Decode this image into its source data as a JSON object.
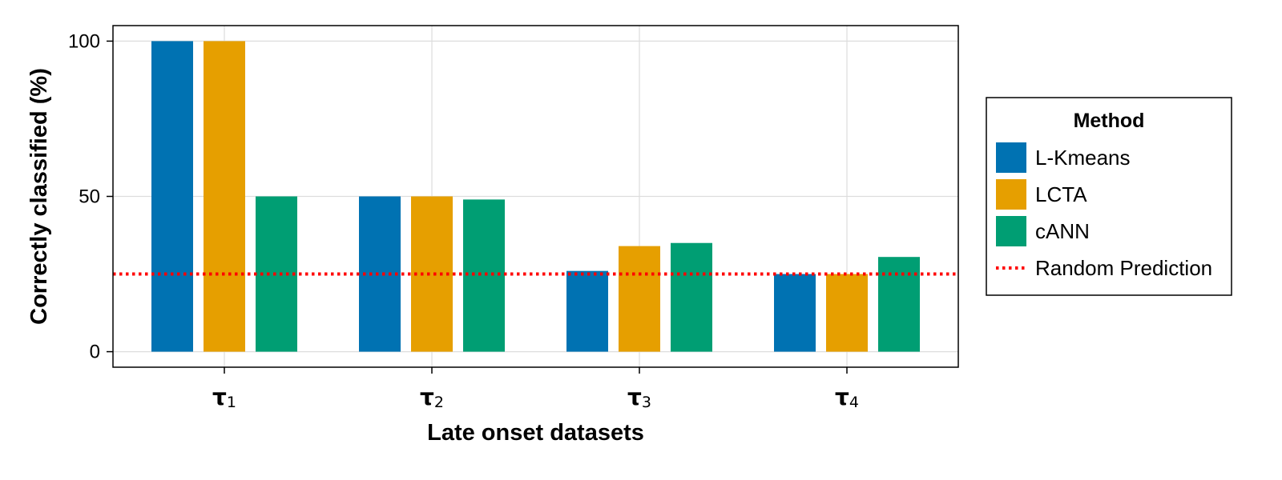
{
  "chart_data": {
    "type": "bar",
    "xlabel": "Late onset datasets",
    "ylabel": "Correctly classified (%)",
    "categories": [
      {
        "base": "τ",
        "sub": "1"
      },
      {
        "base": "τ",
        "sub": "2"
      },
      {
        "base": "τ",
        "sub": "3"
      },
      {
        "base": "τ",
        "sub": "4"
      }
    ],
    "series": [
      {
        "name": "L-Kmeans",
        "color": "#0072b2",
        "values": [
          100,
          50,
          26,
          25
        ]
      },
      {
        "name": "LCTA",
        "color": "#e69f00",
        "values": [
          100,
          50,
          34,
          25
        ]
      },
      {
        "name": "cANN",
        "color": "#009e73",
        "values": [
          50,
          49,
          35,
          30.5
        ]
      }
    ],
    "reference_line": {
      "name": "Random Prediction",
      "value": 25,
      "color": "#ff0000",
      "style": "dotted"
    },
    "yticks": [
      0,
      50,
      100
    ],
    "ylim": [
      -5,
      105
    ],
    "grid": true,
    "legend": {
      "title": "Method",
      "placement": "right"
    }
  }
}
